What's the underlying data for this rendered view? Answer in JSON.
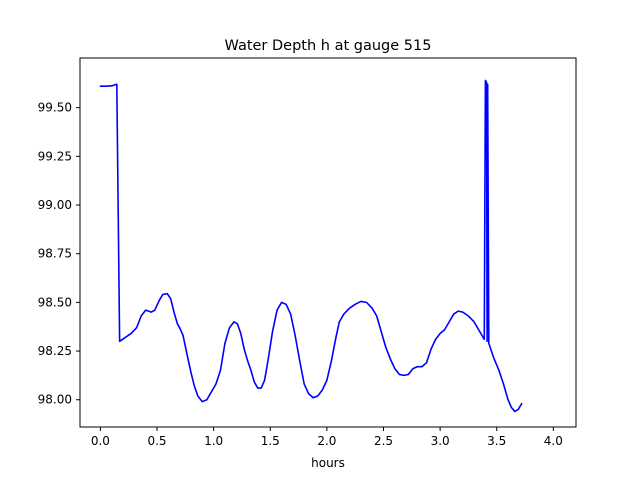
{
  "chart_data": {
    "type": "line",
    "title": "Water Depth h at gauge 515",
    "xlabel": "hours",
    "ylabel": "",
    "xlim": [
      -0.18,
      4.2
    ],
    "ylim": [
      97.86,
      99.755
    ],
    "x_ticks": [
      0.0,
      0.5,
      1.0,
      1.5,
      2.0,
      2.5,
      3.0,
      3.5,
      4.0
    ],
    "x_tick_labels": [
      "0.0",
      "0.5",
      "1.0",
      "1.5",
      "2.0",
      "2.5",
      "3.0",
      "3.5",
      "4.0"
    ],
    "y_ticks": [
      98.0,
      98.25,
      98.5,
      98.75,
      99.0,
      99.25,
      99.5
    ],
    "y_tick_labels": [
      "98.00",
      "98.25",
      "98.50",
      "98.75",
      "99.00",
      "99.25",
      "99.50"
    ],
    "grid": false,
    "series": [
      {
        "name": "",
        "color": "#0000ff",
        "points": [
          [
            0.0,
            99.61
          ],
          [
            0.05,
            99.61
          ],
          [
            0.1,
            99.612
          ],
          [
            0.145,
            99.62
          ],
          [
            0.17,
            98.3
          ],
          [
            0.22,
            98.32
          ],
          [
            0.27,
            98.34
          ],
          [
            0.32,
            98.37
          ],
          [
            0.36,
            98.43
          ],
          [
            0.4,
            98.46
          ],
          [
            0.45,
            98.45
          ],
          [
            0.48,
            98.46
          ],
          [
            0.52,
            98.51
          ],
          [
            0.55,
            98.54
          ],
          [
            0.59,
            98.545
          ],
          [
            0.62,
            98.52
          ],
          [
            0.65,
            98.45
          ],
          [
            0.68,
            98.39
          ],
          [
            0.7,
            98.37
          ],
          [
            0.73,
            98.33
          ],
          [
            0.77,
            98.22
          ],
          [
            0.8,
            98.14
          ],
          [
            0.83,
            98.07
          ],
          [
            0.86,
            98.02
          ],
          [
            0.9,
            97.99
          ],
          [
            0.94,
            98.0
          ],
          [
            0.98,
            98.04
          ],
          [
            1.02,
            98.08
          ],
          [
            1.06,
            98.15
          ],
          [
            1.1,
            98.29
          ],
          [
            1.14,
            98.37
          ],
          [
            1.18,
            98.4
          ],
          [
            1.21,
            98.39
          ],
          [
            1.24,
            98.34
          ],
          [
            1.27,
            98.26
          ],
          [
            1.3,
            98.2
          ],
          [
            1.33,
            98.15
          ],
          [
            1.36,
            98.09
          ],
          [
            1.39,
            98.06
          ],
          [
            1.42,
            98.06
          ],
          [
            1.45,
            98.1
          ],
          [
            1.48,
            98.2
          ],
          [
            1.52,
            98.35
          ],
          [
            1.56,
            98.46
          ],
          [
            1.6,
            98.5
          ],
          [
            1.64,
            98.49
          ],
          [
            1.68,
            98.44
          ],
          [
            1.72,
            98.33
          ],
          [
            1.76,
            98.2
          ],
          [
            1.8,
            98.08
          ],
          [
            1.84,
            98.03
          ],
          [
            1.88,
            98.01
          ],
          [
            1.92,
            98.02
          ],
          [
            1.96,
            98.05
          ],
          [
            2.0,
            98.1
          ],
          [
            2.04,
            98.2
          ],
          [
            2.08,
            98.32
          ],
          [
            2.11,
            98.4
          ],
          [
            2.15,
            98.44
          ],
          [
            2.2,
            98.47
          ],
          [
            2.25,
            98.49
          ],
          [
            2.3,
            98.505
          ],
          [
            2.35,
            98.5
          ],
          [
            2.4,
            98.47
          ],
          [
            2.44,
            98.43
          ],
          [
            2.48,
            98.35
          ],
          [
            2.52,
            98.27
          ],
          [
            2.56,
            98.21
          ],
          [
            2.6,
            98.16
          ],
          [
            2.64,
            98.13
          ],
          [
            2.68,
            98.125
          ],
          [
            2.72,
            98.13
          ],
          [
            2.76,
            98.16
          ],
          [
            2.8,
            98.17
          ],
          [
            2.84,
            98.17
          ],
          [
            2.88,
            98.19
          ],
          [
            2.92,
            98.26
          ],
          [
            2.96,
            98.31
          ],
          [
            3.0,
            98.34
          ],
          [
            3.04,
            98.36
          ],
          [
            3.08,
            98.4
          ],
          [
            3.12,
            98.44
          ],
          [
            3.16,
            98.455
          ],
          [
            3.2,
            98.45
          ],
          [
            3.25,
            98.43
          ],
          [
            3.3,
            98.4
          ],
          [
            3.35,
            98.35
          ],
          [
            3.39,
            98.31
          ],
          [
            3.4,
            99.64
          ],
          [
            3.41,
            99.63
          ],
          [
            3.415,
            98.3
          ],
          [
            3.42,
            99.62
          ],
          [
            3.43,
            98.29
          ],
          [
            3.47,
            98.22
          ],
          [
            3.52,
            98.15
          ],
          [
            3.56,
            98.08
          ],
          [
            3.6,
            98.0
          ],
          [
            3.63,
            97.96
          ],
          [
            3.66,
            97.94
          ],
          [
            3.69,
            97.95
          ],
          [
            3.72,
            97.98
          ]
        ]
      }
    ]
  }
}
